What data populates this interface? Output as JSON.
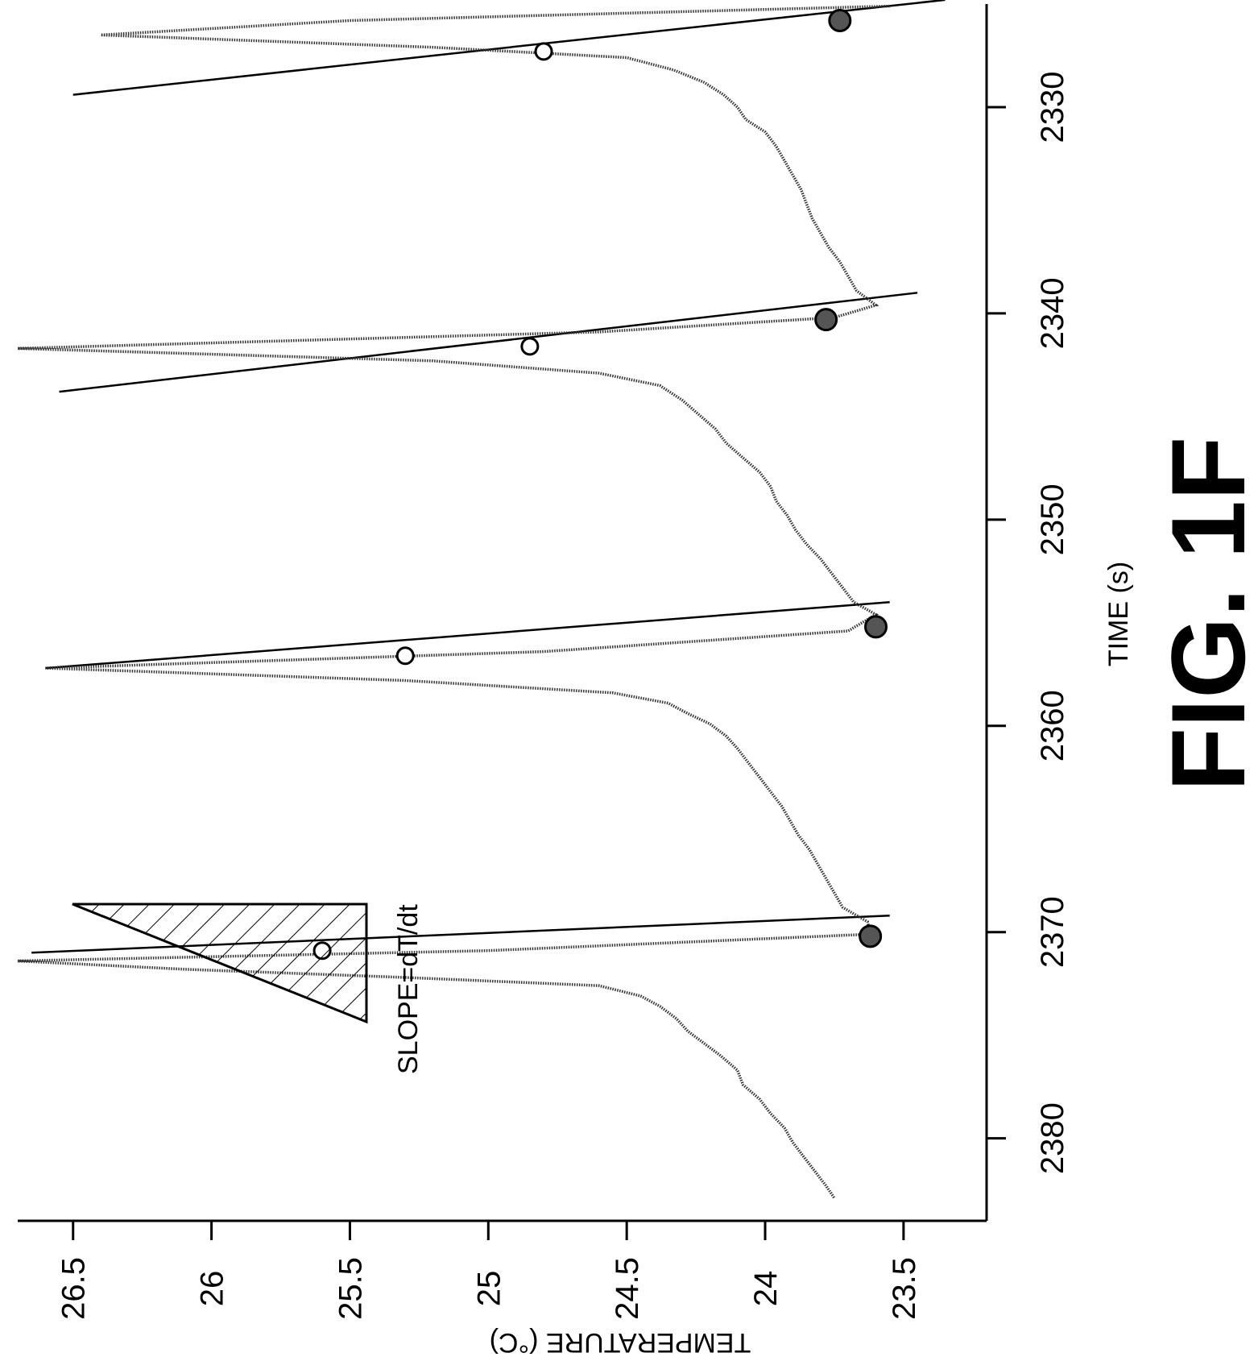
{
  "figure_label": "FIG. 1F",
  "chart_data": {
    "type": "line",
    "title": "",
    "xlabel": "TIME (s)",
    "ylabel": "TEMPERATURE (°C)",
    "xlim": [
      2325,
      2384
    ],
    "ylim": [
      23.2,
      26.7
    ],
    "x_ticks": [
      2330,
      2340,
      2350,
      2360,
      2370,
      2380
    ],
    "x_tick_labels": [
      "2330",
      "2340",
      "2350",
      "2360",
      "2370",
      "2380"
    ],
    "y_ticks": [
      26.5,
      26,
      25.5,
      25,
      24.5,
      24,
      23.5
    ],
    "y_tick_labels": [
      "26.5",
      "26",
      "25.5",
      "25",
      "24.5",
      "24",
      "23.5"
    ],
    "grid": false,
    "legend": "none",
    "orientation": "rotated-90-clockwise",
    "series": [
      {
        "x": [
          2325.1,
          2325.8,
          2326.5,
          2327.1,
          2327.6,
          2328.2,
          2328.8,
          2329.4,
          2330.0,
          2330.6,
          2331.2,
          2331.9,
          2332.6,
          2333.3,
          2334.0,
          2334.7,
          2335.4,
          2336.1,
          2336.8,
          2337.5,
          2338.2,
          2338.9,
          2339.6,
          2340.2,
          2340.9,
          2341.7,
          2342.3,
          2342.9,
          2343.5,
          2344.2,
          2344.9,
          2345.6,
          2346.3,
          2347.0,
          2347.7,
          2348.4,
          2349.1,
          2349.8,
          2350.5,
          2351.2,
          2351.9,
          2352.6,
          2353.3,
          2354.0,
          2354.6,
          2355.4,
          2356.4,
          2357.2,
          2357.8,
          2358.4,
          2358.9,
          2359.4,
          2359.9,
          2360.5,
          2361.1,
          2361.8,
          2362.5,
          2363.2,
          2363.9,
          2364.6,
          2365.3,
          2366.0,
          2366.7,
          2367.4,
          2368.1,
          2368.8,
          2369.5,
          2370.1,
          2370.9,
          2371.4,
          2371.8,
          2372.2,
          2372.6,
          2373.1,
          2373.6,
          2374.2,
          2374.8,
          2375.4,
          2376.0,
          2376.7,
          2377.4,
          2378.1,
          2378.8,
          2379.5,
          2380.2,
          2380.9,
          2381.6,
          2382.3,
          2382.9
        ],
        "y": [
          23.55,
          25.5,
          26.4,
          25.2,
          24.5,
          24.33,
          24.22,
          24.15,
          24.1,
          24.07,
          24.0,
          23.96,
          23.93,
          23.9,
          23.87,
          23.85,
          23.83,
          23.8,
          23.77,
          23.73,
          23.7,
          23.67,
          23.6,
          23.75,
          24.6,
          26.7,
          25.2,
          24.6,
          24.38,
          24.3,
          24.24,
          24.18,
          24.14,
          24.08,
          24.02,
          23.98,
          23.96,
          23.92,
          23.89,
          23.85,
          23.8,
          23.76,
          23.72,
          23.68,
          23.6,
          23.7,
          24.8,
          26.6,
          25.3,
          24.55,
          24.35,
          24.28,
          24.2,
          24.14,
          24.1,
          24.06,
          24.02,
          23.98,
          23.94,
          23.91,
          23.88,
          23.84,
          23.81,
          23.78,
          23.75,
          23.72,
          23.63,
          23.62,
          25.0,
          26.7,
          26.1,
          25.3,
          24.6,
          24.45,
          24.38,
          24.32,
          24.28,
          24.22,
          24.16,
          24.1,
          24.08,
          24.02,
          23.98,
          23.93,
          23.9,
          23.86,
          23.82,
          23.78,
          23.75
        ]
      }
    ],
    "fit_lines": [
      {
        "x": [
          2324.8,
          2329.4
        ],
        "y": [
          23.35,
          26.5
        ]
      },
      {
        "x": [
          2339.0,
          2343.8
        ],
        "y": [
          23.45,
          26.55
        ]
      },
      {
        "x": [
          2354.0,
          2357.2
        ],
        "y": [
          23.55,
          26.6
        ]
      },
      {
        "x": [
          2369.2,
          2371.0
        ],
        "y": [
          23.55,
          26.65
        ]
      }
    ],
    "markers": [
      {
        "x": 2325.8,
        "y": 23.73,
        "filled": true
      },
      {
        "x": 2327.3,
        "y": 24.8,
        "filled": false
      },
      {
        "x": 2340.3,
        "y": 23.78,
        "filled": true
      },
      {
        "x": 2341.6,
        "y": 24.85,
        "filled": false
      },
      {
        "x": 2355.2,
        "y": 23.6,
        "filled": true
      },
      {
        "x": 2356.6,
        "y": 25.3,
        "filled": false
      },
      {
        "x": 2370.2,
        "y": 23.62,
        "filled": true
      },
      {
        "x": 2370.9,
        "y": 25.6,
        "filled": false
      }
    ],
    "annotation": {
      "text": "SLOPE=dT/dt"
    }
  }
}
